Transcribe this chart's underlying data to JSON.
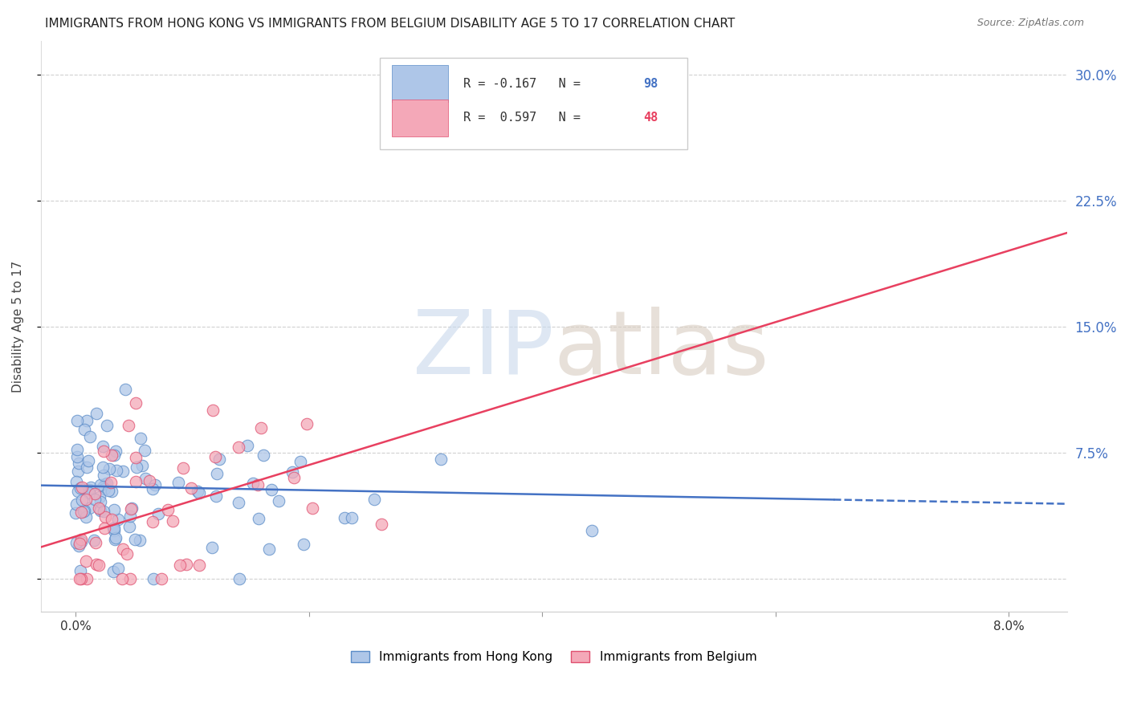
{
  "title": "IMMIGRANTS FROM HONG KONG VS IMMIGRANTS FROM BELGIUM DISABILITY AGE 5 TO 17 CORRELATION CHART",
  "source": "Source: ZipAtlas.com",
  "ylabel": "Disability Age 5 to 17",
  "ylabel_ticks": [
    0.0,
    0.075,
    0.15,
    0.225,
    0.3
  ],
  "ylabel_labels": [
    "",
    "7.5%",
    "15.0%",
    "22.5%",
    "30.0%"
  ],
  "xticks": [
    0.0,
    0.02,
    0.04,
    0.06,
    0.08
  ],
  "xticklabels": [
    "0.0%",
    "",
    "",
    "",
    "8.0%"
  ],
  "xlim": [
    -0.003,
    0.085
  ],
  "ylim": [
    -0.02,
    0.32
  ],
  "hk_R": -0.167,
  "hk_N": 98,
  "be_R": 0.597,
  "be_N": 48,
  "hk_color": "#aec6e8",
  "be_color": "#f4a8b8",
  "hk_edge_color": "#5b8cc8",
  "be_edge_color": "#e05070",
  "hk_line_color": "#4472c4",
  "be_line_color": "#e84060",
  "legend_hk_label": "Immigrants from Hong Kong",
  "legend_be_label": "Immigrants from Belgium",
  "title_fontsize": 11,
  "source_fontsize": 9,
  "seed": 7,
  "hk_line_y0": 0.055,
  "hk_line_y1": 0.045,
  "be_line_y0": 0.025,
  "be_line_y1": 0.195,
  "watermark_zip_color": "#c8d8ec",
  "watermark_atlas_color": "#d8ccc0"
}
